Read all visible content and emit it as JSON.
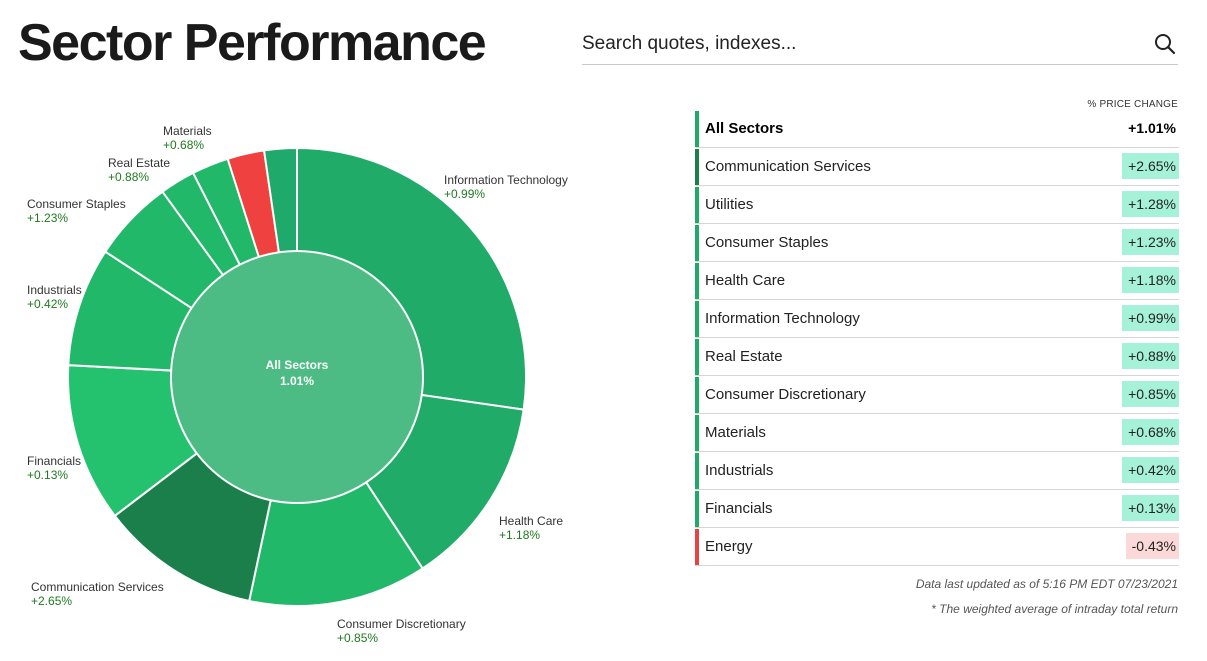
{
  "page": {
    "title": "Sector Performance"
  },
  "search": {
    "placeholder": "Search quotes, indexes...",
    "icon": "search-icon"
  },
  "table": {
    "column_header": "% PRICE CHANGE",
    "summary": {
      "name": "All Sectors",
      "change": "+1.01%",
      "color": "#1fa96a"
    },
    "rows": [
      {
        "name": "Communication Services",
        "change": "+2.65%",
        "bar": "#1a7f4b",
        "bg": "#a6f2d8"
      },
      {
        "name": "Utilities",
        "change": "+1.28%",
        "bar": "#1fa96a",
        "bg": "#a6f2d8"
      },
      {
        "name": "Consumer Staples",
        "change": "+1.23%",
        "bar": "#1fa96a",
        "bg": "#a6f2d8"
      },
      {
        "name": "Health Care",
        "change": "+1.18%",
        "bar": "#1fa96a",
        "bg": "#a6f2d8"
      },
      {
        "name": "Information Technology",
        "change": "+0.99%",
        "bar": "#1fa96a",
        "bg": "#a6f2d8"
      },
      {
        "name": "Real Estate",
        "change": "+0.88%",
        "bar": "#1fa96a",
        "bg": "#a6f2d8"
      },
      {
        "name": "Consumer Discretionary",
        "change": "+0.85%",
        "bar": "#1fa96a",
        "bg": "#a6f2d8"
      },
      {
        "name": "Materials",
        "change": "+0.68%",
        "bar": "#1fa96a",
        "bg": "#a6f2d8"
      },
      {
        "name": "Industrials",
        "change": "+0.42%",
        "bar": "#1fa96a",
        "bg": "#a6f2d8"
      },
      {
        "name": "Financials",
        "change": "+0.13%",
        "bar": "#1fa96a",
        "bg": "#a6f2d8"
      },
      {
        "name": "Energy",
        "change": "-0.43%",
        "bar": "#e84343",
        "bg": "#fbd9d9"
      }
    ]
  },
  "footer": {
    "updated": "Data last updated as of 5:16 PM EDT 07/23/2021",
    "note": "* The weighted average of intraday total return"
  },
  "chart_data": {
    "type": "pie",
    "center": {
      "label": "All Sectors",
      "value": "1.01%",
      "color": "#4cbb84"
    },
    "slices": [
      {
        "name": "Information Technology",
        "change": "+0.99%",
        "weight": 27.3,
        "color": "#20ab68"
      },
      {
        "name": "Health Care",
        "change": "+1.18%",
        "weight": 13.5,
        "color": "#20ab68"
      },
      {
        "name": "Consumer Discretionary",
        "change": "+0.85%",
        "weight": 12.6,
        "color": "#21b86a"
      },
      {
        "name": "Communication Services",
        "change": "+2.65%",
        "weight": 11.3,
        "color": "#1a7f4b"
      },
      {
        "name": "Financials",
        "change": "+0.13%",
        "weight": 11.2,
        "color": "#24c16f"
      },
      {
        "name": "Industrials",
        "change": "+0.42%",
        "weight": 8.4,
        "color": "#21b86a"
      },
      {
        "name": "Consumer Staples",
        "change": "+1.23%",
        "weight": 5.8,
        "color": "#21b86a"
      },
      {
        "name": "Utilities",
        "change": "",
        "weight": 2.5,
        "color": "#21b86a"
      },
      {
        "name": "Real Estate",
        "change": "+0.88%",
        "weight": 2.6,
        "color": "#21b86a"
      },
      {
        "name": "Energy",
        "change": "",
        "weight": 2.6,
        "color": "#f04141"
      },
      {
        "name": "Materials",
        "change": "+0.68%",
        "weight": 2.3,
        "color": "#1fa96a"
      }
    ],
    "labels": [
      {
        "name": "Information Technology",
        "change": "+0.99%"
      },
      {
        "name": "Health Care",
        "change": "+1.18%"
      },
      {
        "name": "Consumer Discretionary",
        "change": "+0.85%"
      },
      {
        "name": "Communication Services",
        "change": "+2.65%"
      },
      {
        "name": "Financials",
        "change": "+0.13%"
      },
      {
        "name": "Industrials",
        "change": "+0.42%"
      },
      {
        "name": "Consumer Staples",
        "change": "+1.23%"
      },
      {
        "name": "Real Estate",
        "change": "+0.88%"
      },
      {
        "name": "Materials",
        "change": "+0.68%"
      }
    ]
  }
}
